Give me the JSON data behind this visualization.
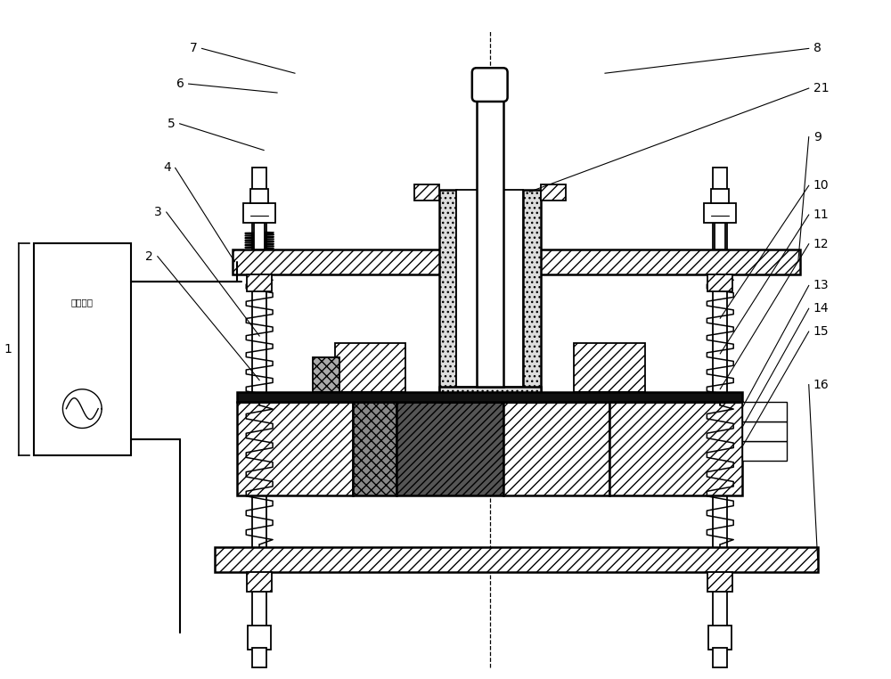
{
  "bg_color": "#ffffff",
  "fig_width": 10.0,
  "fig_height": 7.62,
  "dpi": 100,
  "source_text": "高频电流"
}
